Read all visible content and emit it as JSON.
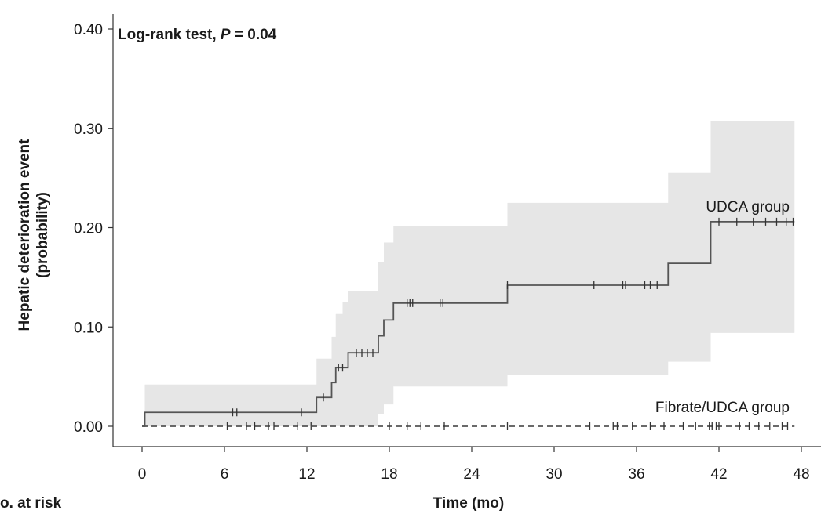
{
  "chart_data": {
    "type": "line",
    "chart_kind": "kaplan-meier cumulative incidence",
    "xlabel": "Time (mo)",
    "ylabel_line1": "Hepatic deterioration event",
    "ylabel_line2": "(probability)",
    "below_axis_text": "o. at risk",
    "annotation": {
      "prefix": "Log-rank test, ",
      "p_symbol": "P",
      "suffix": " = 0.04"
    },
    "xlim": [
      0,
      48
    ],
    "ylim": [
      0,
      0.4
    ],
    "x_ticks": [
      0,
      6,
      12,
      18,
      24,
      30,
      36,
      42,
      48
    ],
    "x_tick_labels": [
      "0",
      "6",
      "12",
      "18",
      "24",
      "30",
      "36",
      "42",
      "48"
    ],
    "y_ticks": [
      0,
      0.1,
      0.2,
      0.3,
      0.4
    ],
    "y_tick_labels": [
      "0.00",
      "0.10",
      "0.20",
      "0.30",
      "0.40"
    ],
    "series": [
      {
        "name": "UDCA group",
        "line_style": "solid",
        "color": "#555555",
        "steps": [
          [
            0,
            0
          ],
          [
            0.2,
            0.014
          ],
          [
            12.7,
            0.029
          ],
          [
            13.8,
            0.044
          ],
          [
            14.1,
            0.059
          ],
          [
            15.0,
            0.074
          ],
          [
            17.2,
            0.091
          ],
          [
            17.6,
            0.107
          ],
          [
            18.3,
            0.124
          ],
          [
            26.6,
            0.142
          ],
          [
            38.3,
            0.164
          ],
          [
            41.4,
            0.206
          ],
          [
            47.5,
            0.206
          ]
        ],
        "censor_x": [
          6.6,
          6.9,
          11.6,
          13.2,
          14.3,
          14.6,
          15.6,
          16.0,
          16.4,
          16.8,
          19.3,
          19.5,
          19.7,
          21.7,
          21.9,
          26.6,
          32.9,
          35.0,
          35.2,
          36.6,
          37.0,
          37.5,
          42.0,
          43.3,
          44.5,
          45.4,
          46.2,
          46.9,
          47.4
        ],
        "ci_band": {
          "x": [
            0,
            0.2,
            12.2,
            12.7,
            13.8,
            14.1,
            14.6,
            15.0,
            17.2,
            17.6,
            18.3,
            22.0,
            26.6,
            38.0,
            38.3,
            41.4,
            47.5
          ],
          "lower": [
            0,
            0,
            0,
            0,
            0,
            0,
            0,
            0,
            0.012,
            0.022,
            0.04,
            0.04,
            0.052,
            0.052,
            0.065,
            0.094,
            0.094
          ],
          "upper": [
            0,
            0.042,
            0.042,
            0.068,
            0.09,
            0.113,
            0.125,
            0.136,
            0.165,
            0.185,
            0.202,
            0.202,
            0.225,
            0.225,
            0.255,
            0.307,
            0.307
          ]
        },
        "ci_fill": "#e6e6e6"
      },
      {
        "name": "Fibrate/UDCA group",
        "line_style": "dashed",
        "color": "#555555",
        "x": [
          0,
          47.5
        ],
        "y": [
          0,
          0
        ],
        "censor_x": [
          6.2,
          7.6,
          8.2,
          9.2,
          9.6,
          11.3,
          12.3,
          18.0,
          19.3,
          20.3,
          22.0,
          26.6,
          32.6,
          34.3,
          34.6,
          35.7,
          37.0,
          38.0,
          39.4,
          40.3,
          41.3,
          41.5,
          41.8,
          42.0,
          43.5,
          44.2,
          44.9,
          45.7,
          46.6,
          47.0
        ]
      }
    ],
    "grid": false,
    "legend": "none (direct labels on lines)"
  }
}
